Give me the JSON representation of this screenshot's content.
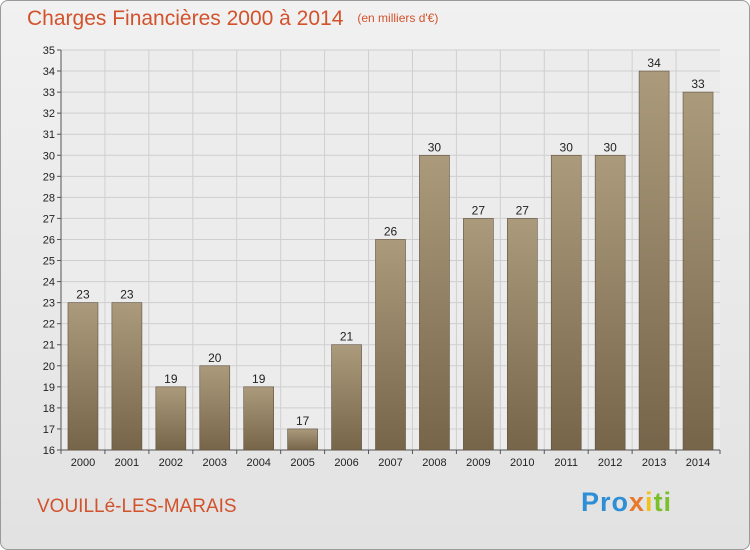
{
  "header": {
    "title": "Charges Financières 2000 à 2014",
    "unit": "(en milliers d'€)"
  },
  "footer": {
    "commune": "VOUILLé-LES-MARAIS",
    "logo": "Proxiti"
  },
  "colors": {
    "title": "#d2522b",
    "bar_top": "#ab9b7c",
    "bar_bottom": "#77654a",
    "grid": "#cfcfcf"
  },
  "chart_data": {
    "type": "bar",
    "title": "Charges Financières 2000 à 2014",
    "subtitle": "(en milliers d'€)",
    "categories": [
      "2000",
      "2001",
      "2002",
      "2003",
      "2004",
      "2005",
      "2006",
      "2007",
      "2008",
      "2009",
      "2010",
      "2011",
      "2012",
      "2013",
      "2014"
    ],
    "values": [
      23,
      23,
      19,
      20,
      19,
      17,
      21,
      26,
      30,
      27,
      27,
      30,
      30,
      34,
      33
    ],
    "ylim": [
      16,
      35
    ],
    "yticks": [
      16,
      17,
      18,
      19,
      20,
      21,
      22,
      23,
      24,
      25,
      26,
      27,
      28,
      29,
      30,
      31,
      32,
      33,
      34,
      35
    ],
    "grid": true
  }
}
